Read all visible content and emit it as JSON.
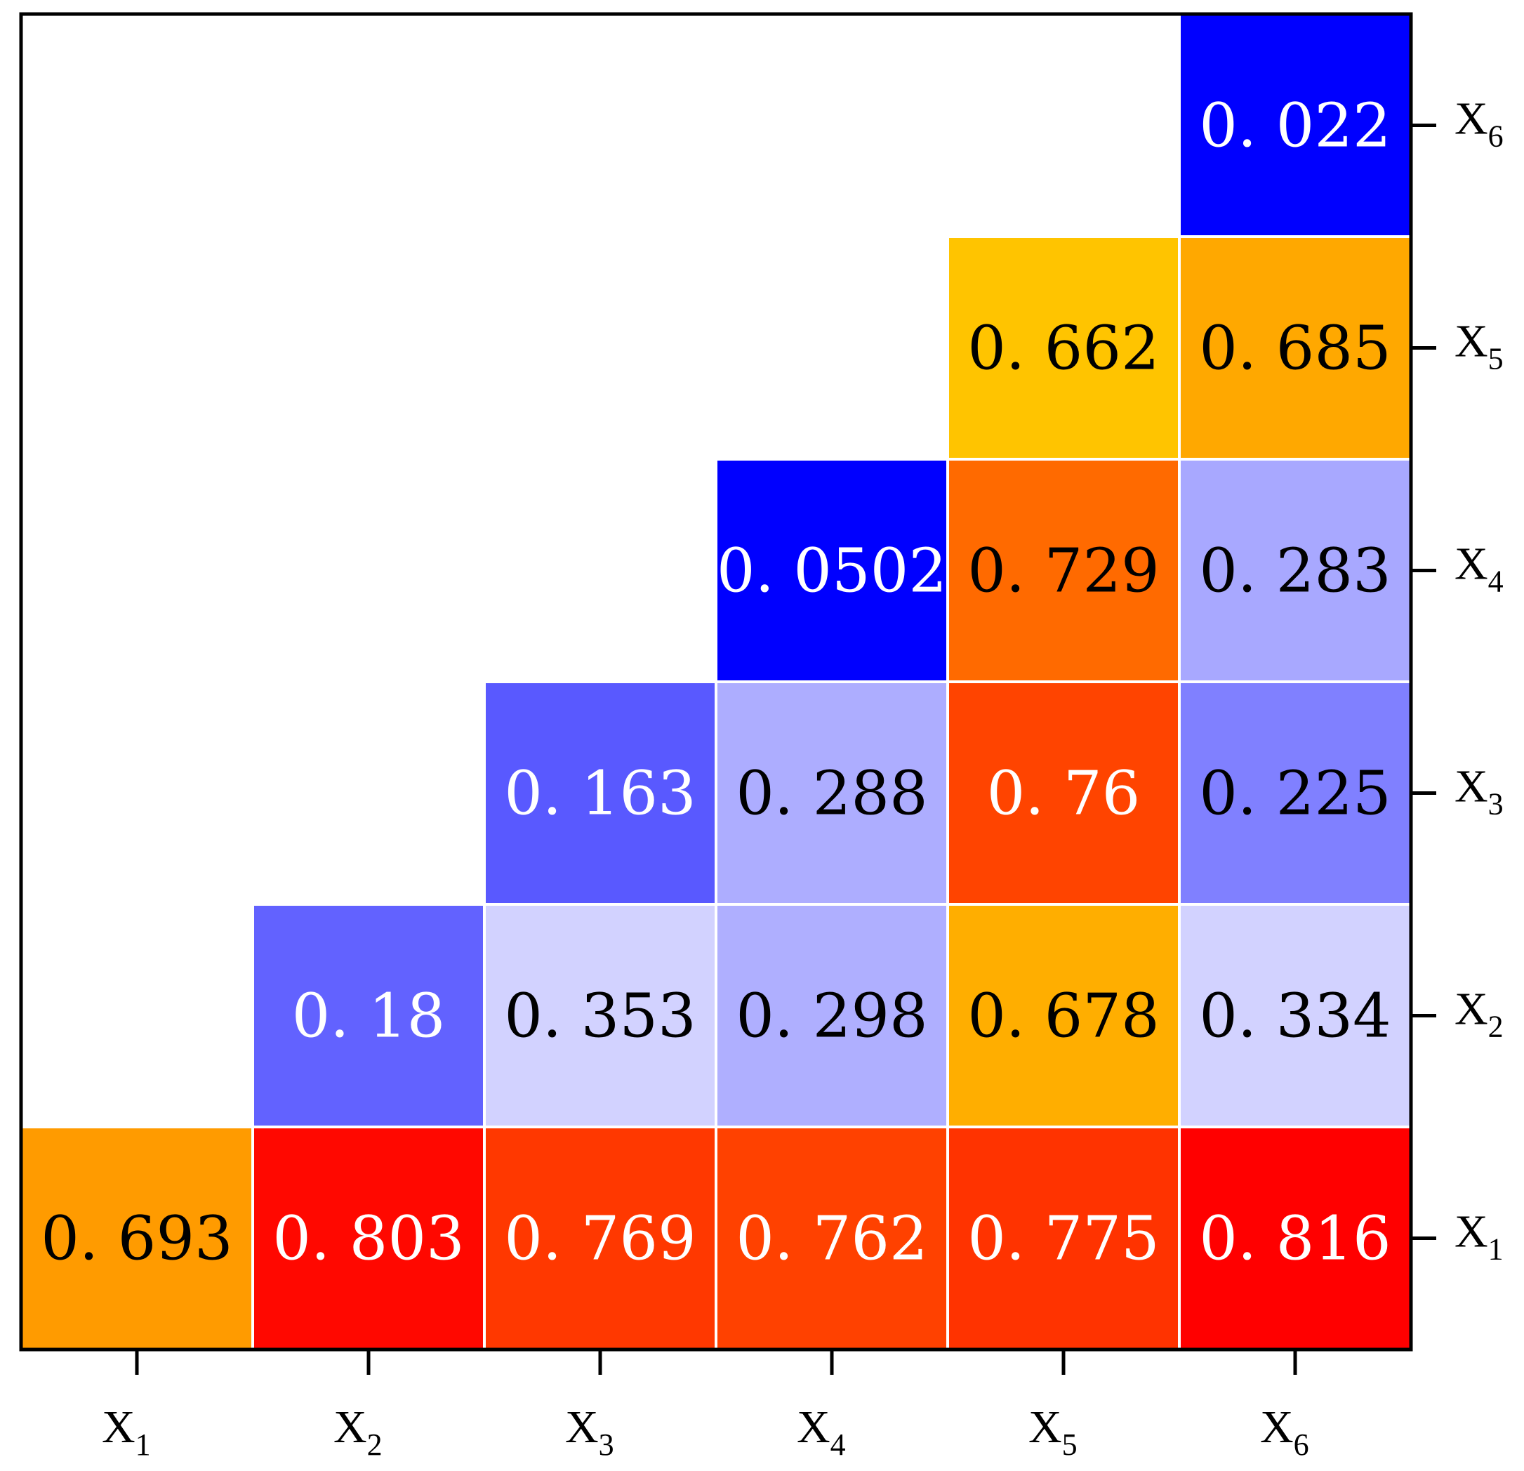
{
  "chart_data": {
    "type": "heatmap",
    "title": "",
    "xlabel": "",
    "ylabel": "",
    "x_categories": [
      {
        "main": "X",
        "sub": "1"
      },
      {
        "main": "X",
        "sub": "2"
      },
      {
        "main": "X",
        "sub": "3"
      },
      {
        "main": "X",
        "sub": "4"
      },
      {
        "main": "X",
        "sub": "5"
      },
      {
        "main": "X",
        "sub": "6"
      }
    ],
    "y_categories_bottom_to_top": [
      {
        "main": "X",
        "sub": "1"
      },
      {
        "main": "X",
        "sub": "2"
      },
      {
        "main": "X",
        "sub": "3"
      },
      {
        "main": "X",
        "sub": "4"
      },
      {
        "main": "X",
        "sub": "5"
      },
      {
        "main": "X",
        "sub": "6"
      }
    ],
    "y_axis_side": "right",
    "layout": "upper-triangular",
    "cells": [
      {
        "x": 0,
        "y": 0,
        "label": "0. 693",
        "value": 0.693,
        "color": "#FF9B00",
        "text_color": "#000000"
      },
      {
        "x": 1,
        "y": 0,
        "label": "0. 803",
        "value": 0.803,
        "color": "#FF0800",
        "text_color": "#FFFFFF"
      },
      {
        "x": 2,
        "y": 0,
        "label": "0. 769",
        "value": 0.769,
        "color": "#FF3800",
        "text_color": "#FFFFFF"
      },
      {
        "x": 3,
        "y": 0,
        "label": "0. 762",
        "value": 0.762,
        "color": "#FF4100",
        "text_color": "#FFFFFF"
      },
      {
        "x": 4,
        "y": 0,
        "label": "0. 775",
        "value": 0.775,
        "color": "#FF3300",
        "text_color": "#FFFFFF"
      },
      {
        "x": 5,
        "y": 0,
        "label": "0. 816",
        "value": 0.816,
        "color": "#FF0000",
        "text_color": "#FFFFFF"
      },
      {
        "x": 1,
        "y": 1,
        "label": "0. 18",
        "value": 0.18,
        "color": "#6262FF",
        "text_color": "#FFFFFF"
      },
      {
        "x": 2,
        "y": 1,
        "label": "0. 353",
        "value": 0.353,
        "color": "#D2D2FF",
        "text_color": "#000000"
      },
      {
        "x": 3,
        "y": 1,
        "label": "0. 298",
        "value": 0.298,
        "color": "#AFAFFF",
        "text_color": "#000000"
      },
      {
        "x": 4,
        "y": 1,
        "label": "0. 678",
        "value": 0.678,
        "color": "#FFAE00",
        "text_color": "#000000"
      },
      {
        "x": 5,
        "y": 1,
        "label": "0. 334",
        "value": 0.334,
        "color": "#D2D2FF",
        "text_color": "#000000"
      },
      {
        "x": 2,
        "y": 2,
        "label": "0. 163",
        "value": 0.163,
        "color": "#5959FF",
        "text_color": "#FFFFFF"
      },
      {
        "x": 3,
        "y": 2,
        "label": "0. 288",
        "value": 0.288,
        "color": "#ADADFF",
        "text_color": "#000000"
      },
      {
        "x": 4,
        "y": 2,
        "label": "0. 76",
        "value": 0.76,
        "color": "#FF4400",
        "text_color": "#FFFFFF"
      },
      {
        "x": 5,
        "y": 2,
        "label": "0. 225",
        "value": 0.225,
        "color": "#8080FF",
        "text_color": "#000000"
      },
      {
        "x": 3,
        "y": 3,
        "label": "0. 0502",
        "value": 0.0502,
        "color": "#0000FF",
        "text_color": "#FFFFFF"
      },
      {
        "x": 4,
        "y": 3,
        "label": "0. 729",
        "value": 0.729,
        "color": "#FF6A00",
        "text_color": "#000000"
      },
      {
        "x": 5,
        "y": 3,
        "label": "0. 283",
        "value": 0.283,
        "color": "#A8A8FF",
        "text_color": "#000000"
      },
      {
        "x": 4,
        "y": 4,
        "label": "0. 662",
        "value": 0.662,
        "color": "#FFC400",
        "text_color": "#000000"
      },
      {
        "x": 5,
        "y": 4,
        "label": "0. 685",
        "value": 0.685,
        "color": "#FFA800",
        "text_color": "#000000"
      },
      {
        "x": 5,
        "y": 5,
        "label": "0. 022",
        "value": 0.022,
        "color": "#0000FF",
        "text_color": "#FFFFFF"
      }
    ],
    "frame_color": "#000000",
    "cell_gap_color": "#FFFFFF"
  }
}
